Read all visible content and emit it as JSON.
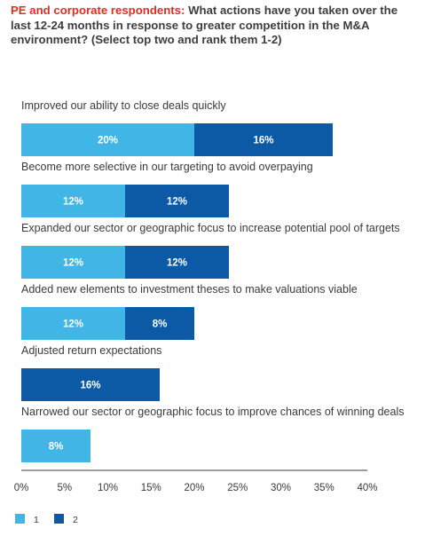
{
  "chart_data": {
    "type": "bar",
    "orientation": "horizontal",
    "stacked": true,
    "title_lead": "PE and corporate respondents:",
    "title": "What actions have you taken over the last 12-24 months in response to greater competition in the M&A environment? (Select top two and rank them 1-2)",
    "categories": [
      "Improved our ability to close deals quickly",
      "Become more selective in our targeting to avoid overpaying",
      "Expanded our sector or geographic focus to increase potential pool of targets",
      "Added new elements to investment theses to make valuations viable",
      "Adjusted return expectations",
      "Narrowed our sector or geographic focus to improve chances of winning deals"
    ],
    "series": [
      {
        "name": "1",
        "color": "#41b6e6",
        "values": [
          20,
          12,
          12,
          12,
          0,
          8
        ]
      },
      {
        "name": "2",
        "color": "#0c5aa6",
        "values": [
          16,
          12,
          12,
          8,
          16,
          0
        ]
      }
    ],
    "value_labels": [
      [
        "20%",
        "16%"
      ],
      [
        "12%",
        "12%"
      ],
      [
        "12%",
        "12%"
      ],
      [
        "12%",
        "8%"
      ],
      [
        "",
        "16%"
      ],
      [
        "8%",
        ""
      ]
    ],
    "x_ticks": [
      0,
      5,
      10,
      15,
      20,
      25,
      30,
      35,
      40
    ],
    "x_tick_labels": [
      "0%",
      "5%",
      "10%",
      "15%",
      "20%",
      "25%",
      "30%",
      "35%",
      "40%"
    ],
    "xlim": [
      0,
      40
    ],
    "grid": false,
    "legend_position": "bottom-left"
  }
}
